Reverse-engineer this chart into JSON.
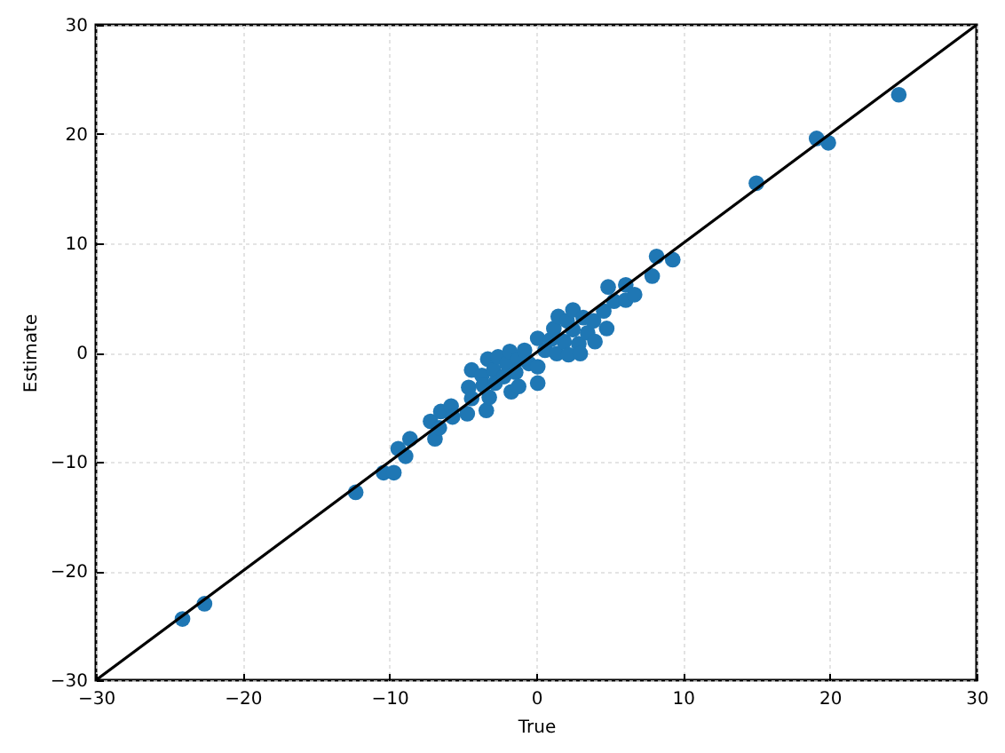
{
  "chart_data": {
    "type": "scatter",
    "xlabel": "True",
    "ylabel": "Estimate",
    "xlim": [
      -30,
      30
    ],
    "ylim": [
      -30,
      30
    ],
    "xticks": [
      -30,
      -20,
      -10,
      0,
      10,
      20,
      30
    ],
    "yticks": [
      -30,
      -20,
      -10,
      0,
      10,
      20,
      30
    ],
    "grid": true,
    "series": [
      {
        "color": "#1f77b4",
        "marker": "circle",
        "x": [
          -24.1,
          -22.6,
          -12.3,
          -10.4,
          -9.7,
          -9.4,
          -8.6,
          -8.9,
          -7.2,
          -6.9,
          -6.6,
          -6.5,
          -5.8,
          -5.7,
          -4.7,
          -4.6,
          -4.4,
          -4.4,
          -3.7,
          -3.4,
          -3.6,
          -3.3,
          -3.2,
          -2.9,
          -2.8,
          -2.6,
          -2.2,
          -2.0,
          -1.8,
          -1.7,
          -1.4,
          -1.2,
          -1.2,
          -0.8,
          -0.5,
          0.1,
          0.1,
          0.1,
          0.6,
          1.0,
          1.2,
          1.4,
          1.5,
          1.9,
          2.1,
          2.2,
          2.5,
          2.5,
          2.9,
          3.0,
          3.2,
          3.5,
          3.9,
          4.0,
          4.6,
          4.8,
          4.9,
          5.3,
          6.1,
          6.1,
          6.7,
          7.9,
          8.2,
          9.3,
          15.0,
          19.1,
          19.9,
          24.7
        ],
        "values": [
          -24.4,
          -23.0,
          -12.8,
          -11.0,
          -11.0,
          -8.8,
          -7.9,
          -9.5,
          -6.3,
          -7.9,
          -6.9,
          -5.4,
          -4.9,
          -5.9,
          -5.6,
          -3.2,
          -1.6,
          -4.2,
          -2.1,
          -5.3,
          -3.0,
          -0.6,
          -4.1,
          -1.6,
          -2.8,
          -0.4,
          -2.2,
          -1.0,
          0.1,
          -3.6,
          -1.8,
          -0.6,
          -3.1,
          0.2,
          -1.0,
          1.3,
          -1.3,
          -2.8,
          0.2,
          1.2,
          2.2,
          -0.1,
          3.3,
          1.0,
          2.9,
          -0.2,
          3.9,
          2.1,
          0.8,
          -0.1,
          3.2,
          1.8,
          2.9,
          1.0,
          3.8,
          2.2,
          6.0,
          4.7,
          6.2,
          4.8,
          5.3,
          7.0,
          8.8,
          8.5,
          15.5,
          19.6,
          19.2,
          23.6
        ]
      },
      {
        "type": "line",
        "color": "#000000",
        "line_style": "solid",
        "x": [
          -30,
          30
        ],
        "values": [
          -30,
          30
        ]
      }
    ]
  }
}
